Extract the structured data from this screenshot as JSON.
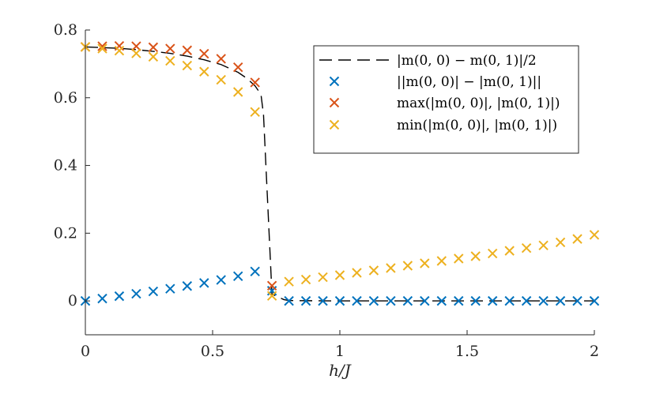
{
  "chart_data": {
    "type": "scatter",
    "title": "",
    "xlabel": "h/J",
    "ylabel": "",
    "xlim": [
      0,
      2
    ],
    "ylim": [
      -0.1,
      0.8
    ],
    "grid": false,
    "legend_position": "top-right",
    "x_ticks": [
      0,
      0.5,
      1,
      1.5,
      2
    ],
    "x_tick_labels": [
      "0",
      "0.5",
      "1",
      "1.5",
      "2"
    ],
    "y_ticks": [
      0,
      0.2,
      0.4,
      0.6,
      0.8
    ],
    "y_tick_labels": [
      "0",
      "0.2",
      "0.4",
      "0.6",
      "0.8"
    ],
    "x": [
      0,
      0.0667,
      0.1333,
      0.2,
      0.2667,
      0.3333,
      0.4,
      0.4667,
      0.5333,
      0.6,
      0.6667,
      0.7333,
      0.8,
      0.8667,
      0.9333,
      1.0,
      1.0667,
      1.1333,
      1.2,
      1.2667,
      1.3333,
      1.4,
      1.4667,
      1.5333,
      1.6,
      1.6667,
      1.7333,
      1.8,
      1.8667,
      1.9333,
      2.0
    ],
    "series": [
      {
        "name": "|m(0,0) − m(0,1)|/2",
        "legend_label": "|m(0, 0) − m(0, 1)|/2",
        "style": "dashed-line",
        "color": "#000000",
        "points": [
          [
            0,
            0.75
          ],
          [
            0.0667,
            0.748
          ],
          [
            0.1333,
            0.746
          ],
          [
            0.2,
            0.742
          ],
          [
            0.2667,
            0.737
          ],
          [
            0.3333,
            0.731
          ],
          [
            0.4,
            0.723
          ],
          [
            0.4667,
            0.712
          ],
          [
            0.5333,
            0.698
          ],
          [
            0.6,
            0.675
          ],
          [
            0.6333,
            0.658
          ],
          [
            0.6667,
            0.635
          ],
          [
            0.69,
            0.61
          ],
          [
            0.7,
            0.55
          ],
          [
            0.7333,
            0.02
          ],
          [
            0.78,
            0.004
          ],
          [
            0.8,
            0.001
          ],
          [
            1.0,
            0.0
          ],
          [
            1.5,
            0.0
          ],
          [
            2.0,
            0.0
          ]
        ]
      },
      {
        "name": "||m(0,0)| − |m(0,1)||",
        "legend_label": "||m(0, 0)| − |m(0, 1)||",
        "style": "x-marker",
        "color": "#0072BD",
        "values": [
          0.0,
          0.007,
          0.014,
          0.021,
          0.028,
          0.036,
          0.044,
          0.053,
          0.062,
          0.073,
          0.087,
          0.03,
          0.0,
          0.0,
          0.0,
          0.0,
          0.0,
          0.0,
          0.0,
          0.0,
          0.0,
          0.0,
          0.0,
          0.0,
          0.0,
          0.0,
          0.0,
          0.0,
          0.0,
          0.0,
          0.0
        ]
      },
      {
        "name": "max(|m(0,0)|, |m(0,1)|)",
        "legend_label": "max(|m(0, 0)|, |m(0, 1)|)",
        "style": "x-marker",
        "color": "#D95319",
        "values": [
          0.75,
          0.752,
          0.753,
          0.752,
          0.749,
          0.745,
          0.74,
          0.73,
          0.715,
          0.69,
          0.645,
          0.045,
          null,
          null,
          null,
          null,
          null,
          null,
          null,
          null,
          null,
          null,
          null,
          null,
          null,
          null,
          null,
          null,
          null,
          null,
          null
        ]
      },
      {
        "name": "min(|m(0,0)|, |m(0,1)|)",
        "legend_label": "min(|m(0, 0)|, |m(0, 1)|)",
        "style": "x-marker",
        "color": "#EDB120",
        "values": [
          0.75,
          0.745,
          0.739,
          0.731,
          0.721,
          0.709,
          0.695,
          0.677,
          0.653,
          0.617,
          0.558,
          0.015,
          0.057,
          0.063,
          0.07,
          0.076,
          0.083,
          0.09,
          0.097,
          0.104,
          0.111,
          0.118,
          0.125,
          0.132,
          0.14,
          0.148,
          0.156,
          0.164,
          0.173,
          0.183,
          0.195
        ]
      }
    ]
  }
}
